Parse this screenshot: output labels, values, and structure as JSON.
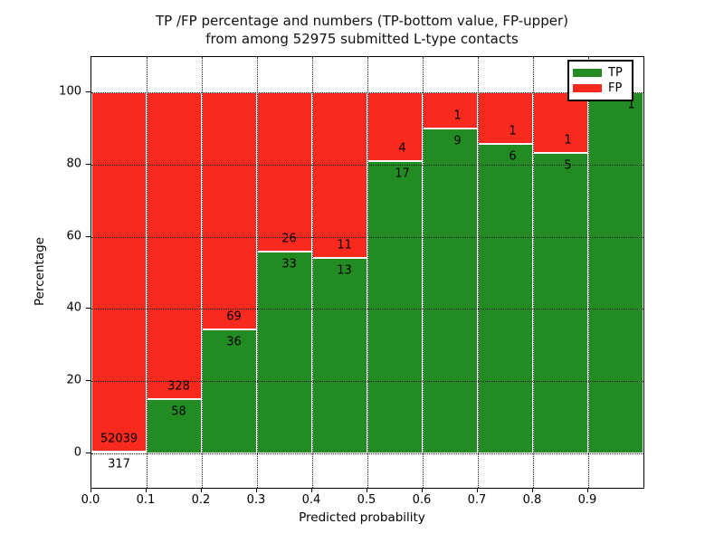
{
  "figure": {
    "title_line1": "TP /FP percentage and numbers (TP-bottom value, FP-upper)",
    "title_line2": "from among 52975 submitted L-type contacts"
  },
  "chart_data": {
    "type": "bar",
    "subtype": "stacked-percentage",
    "title": "TP /FP percentage and numbers (TP-bottom value, FP-upper) from among 52975 submitted L-type contacts",
    "xlabel": "Predicted probability",
    "ylabel": "Percentage",
    "total_submitted": 52975,
    "xlim": [
      0.0,
      1.0
    ],
    "ylim": [
      -10,
      110
    ],
    "grid": true,
    "x_tick_labels": [
      "0.0",
      "0.1",
      "0.2",
      "0.3",
      "0.4",
      "0.5",
      "0.6",
      "0.7",
      "0.8",
      "0.9"
    ],
    "y_ticks": [
      0,
      20,
      40,
      60,
      80,
      100
    ],
    "legend": {
      "position": "upper right",
      "entries": [
        {
          "label": "TP",
          "color": "#228b22"
        },
        {
          "label": "FP",
          "color": "#f8291d"
        }
      ]
    },
    "series_note": "Each 0.1-wide probability bin is a full-height (100%) stacked bar; green = TP share, red = FP share; numbers printed are raw counts (TP below boundary, FP above boundary).",
    "bins": [
      {
        "x_start": 0.0,
        "x_end": 0.1,
        "tp": 317,
        "fp": 52039,
        "tp_pct": 0.61
      },
      {
        "x_start": 0.1,
        "x_end": 0.2,
        "tp": 58,
        "fp": 328,
        "tp_pct": 15.03
      },
      {
        "x_start": 0.2,
        "x_end": 0.3,
        "tp": 36,
        "fp": 69,
        "tp_pct": 34.29
      },
      {
        "x_start": 0.3,
        "x_end": 0.4,
        "tp": 33,
        "fp": 26,
        "tp_pct": 55.93
      },
      {
        "x_start": 0.4,
        "x_end": 0.5,
        "tp": 13,
        "fp": 11,
        "tp_pct": 54.17
      },
      {
        "x_start": 0.5,
        "x_end": 0.6,
        "tp": 17,
        "fp": 4,
        "tp_pct": 80.95
      },
      {
        "x_start": 0.6,
        "x_end": 0.7,
        "tp": 9,
        "fp": 1,
        "tp_pct": 90.0
      },
      {
        "x_start": 0.7,
        "x_end": 0.8,
        "tp": 6,
        "fp": 1,
        "tp_pct": 85.71
      },
      {
        "x_start": 0.8,
        "x_end": 0.9,
        "tp": 5,
        "fp": 1,
        "tp_pct": 83.33
      },
      {
        "x_start": 0.9,
        "x_end": 1.0,
        "tp": 1,
        "fp": 0,
        "tp_pct": 100.0
      }
    ]
  }
}
